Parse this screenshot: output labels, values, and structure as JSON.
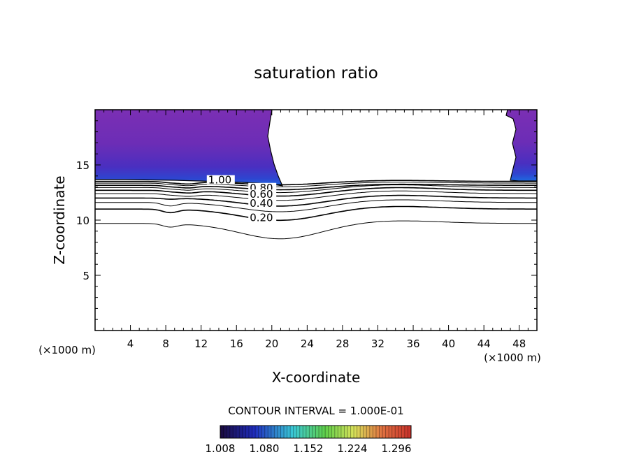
{
  "title": "saturation ratio",
  "chart_data": {
    "type": "contour",
    "title": "saturation ratio",
    "xlabel": "X-coordinate",
    "ylabel": "Z-coordinate",
    "x_unit": "(×1000 m)",
    "y_unit": "(×1000 m)",
    "xlim": [
      0,
      50
    ],
    "ylim": [
      0,
      20
    ],
    "x_ticks": [
      4,
      8,
      12,
      16,
      20,
      24,
      28,
      32,
      36,
      40,
      44,
      48
    ],
    "y_ticks": [
      5,
      10,
      15
    ],
    "contour_interval_text": "CONTOUR INTERVAL = 1.000E-01",
    "contour_levels": [
      0.1,
      0.2,
      0.3,
      0.4,
      0.5,
      0.6,
      0.7,
      0.8,
      0.9,
      1.0
    ],
    "contour_labels": [
      {
        "text": "1.00",
        "x": 12.8,
        "z": 13.5
      },
      {
        "text": "0.80",
        "x": 17.5,
        "z": 12.8
      },
      {
        "text": "0.60",
        "x": 17.5,
        "z": 12.2
      },
      {
        "text": "0.40",
        "x": 17.5,
        "z": 11.4
      },
      {
        "text": "0.20",
        "x": 17.5,
        "z": 10.1
      }
    ],
    "colorbar": {
      "min": 1.008,
      "max": 1.32,
      "tick_labels": [
        "1.008",
        "1.080",
        "1.152",
        "1.224",
        "1.296"
      ],
      "colors": [
        "#1a0a3c",
        "#1f2dbe",
        "#3ac8d6",
        "#5fcf4a",
        "#d8e25a",
        "#e07040",
        "#c8302a"
      ]
    },
    "fill_color": "#7a2fb0",
    "fill_color_edge": "#3a6ad8"
  }
}
